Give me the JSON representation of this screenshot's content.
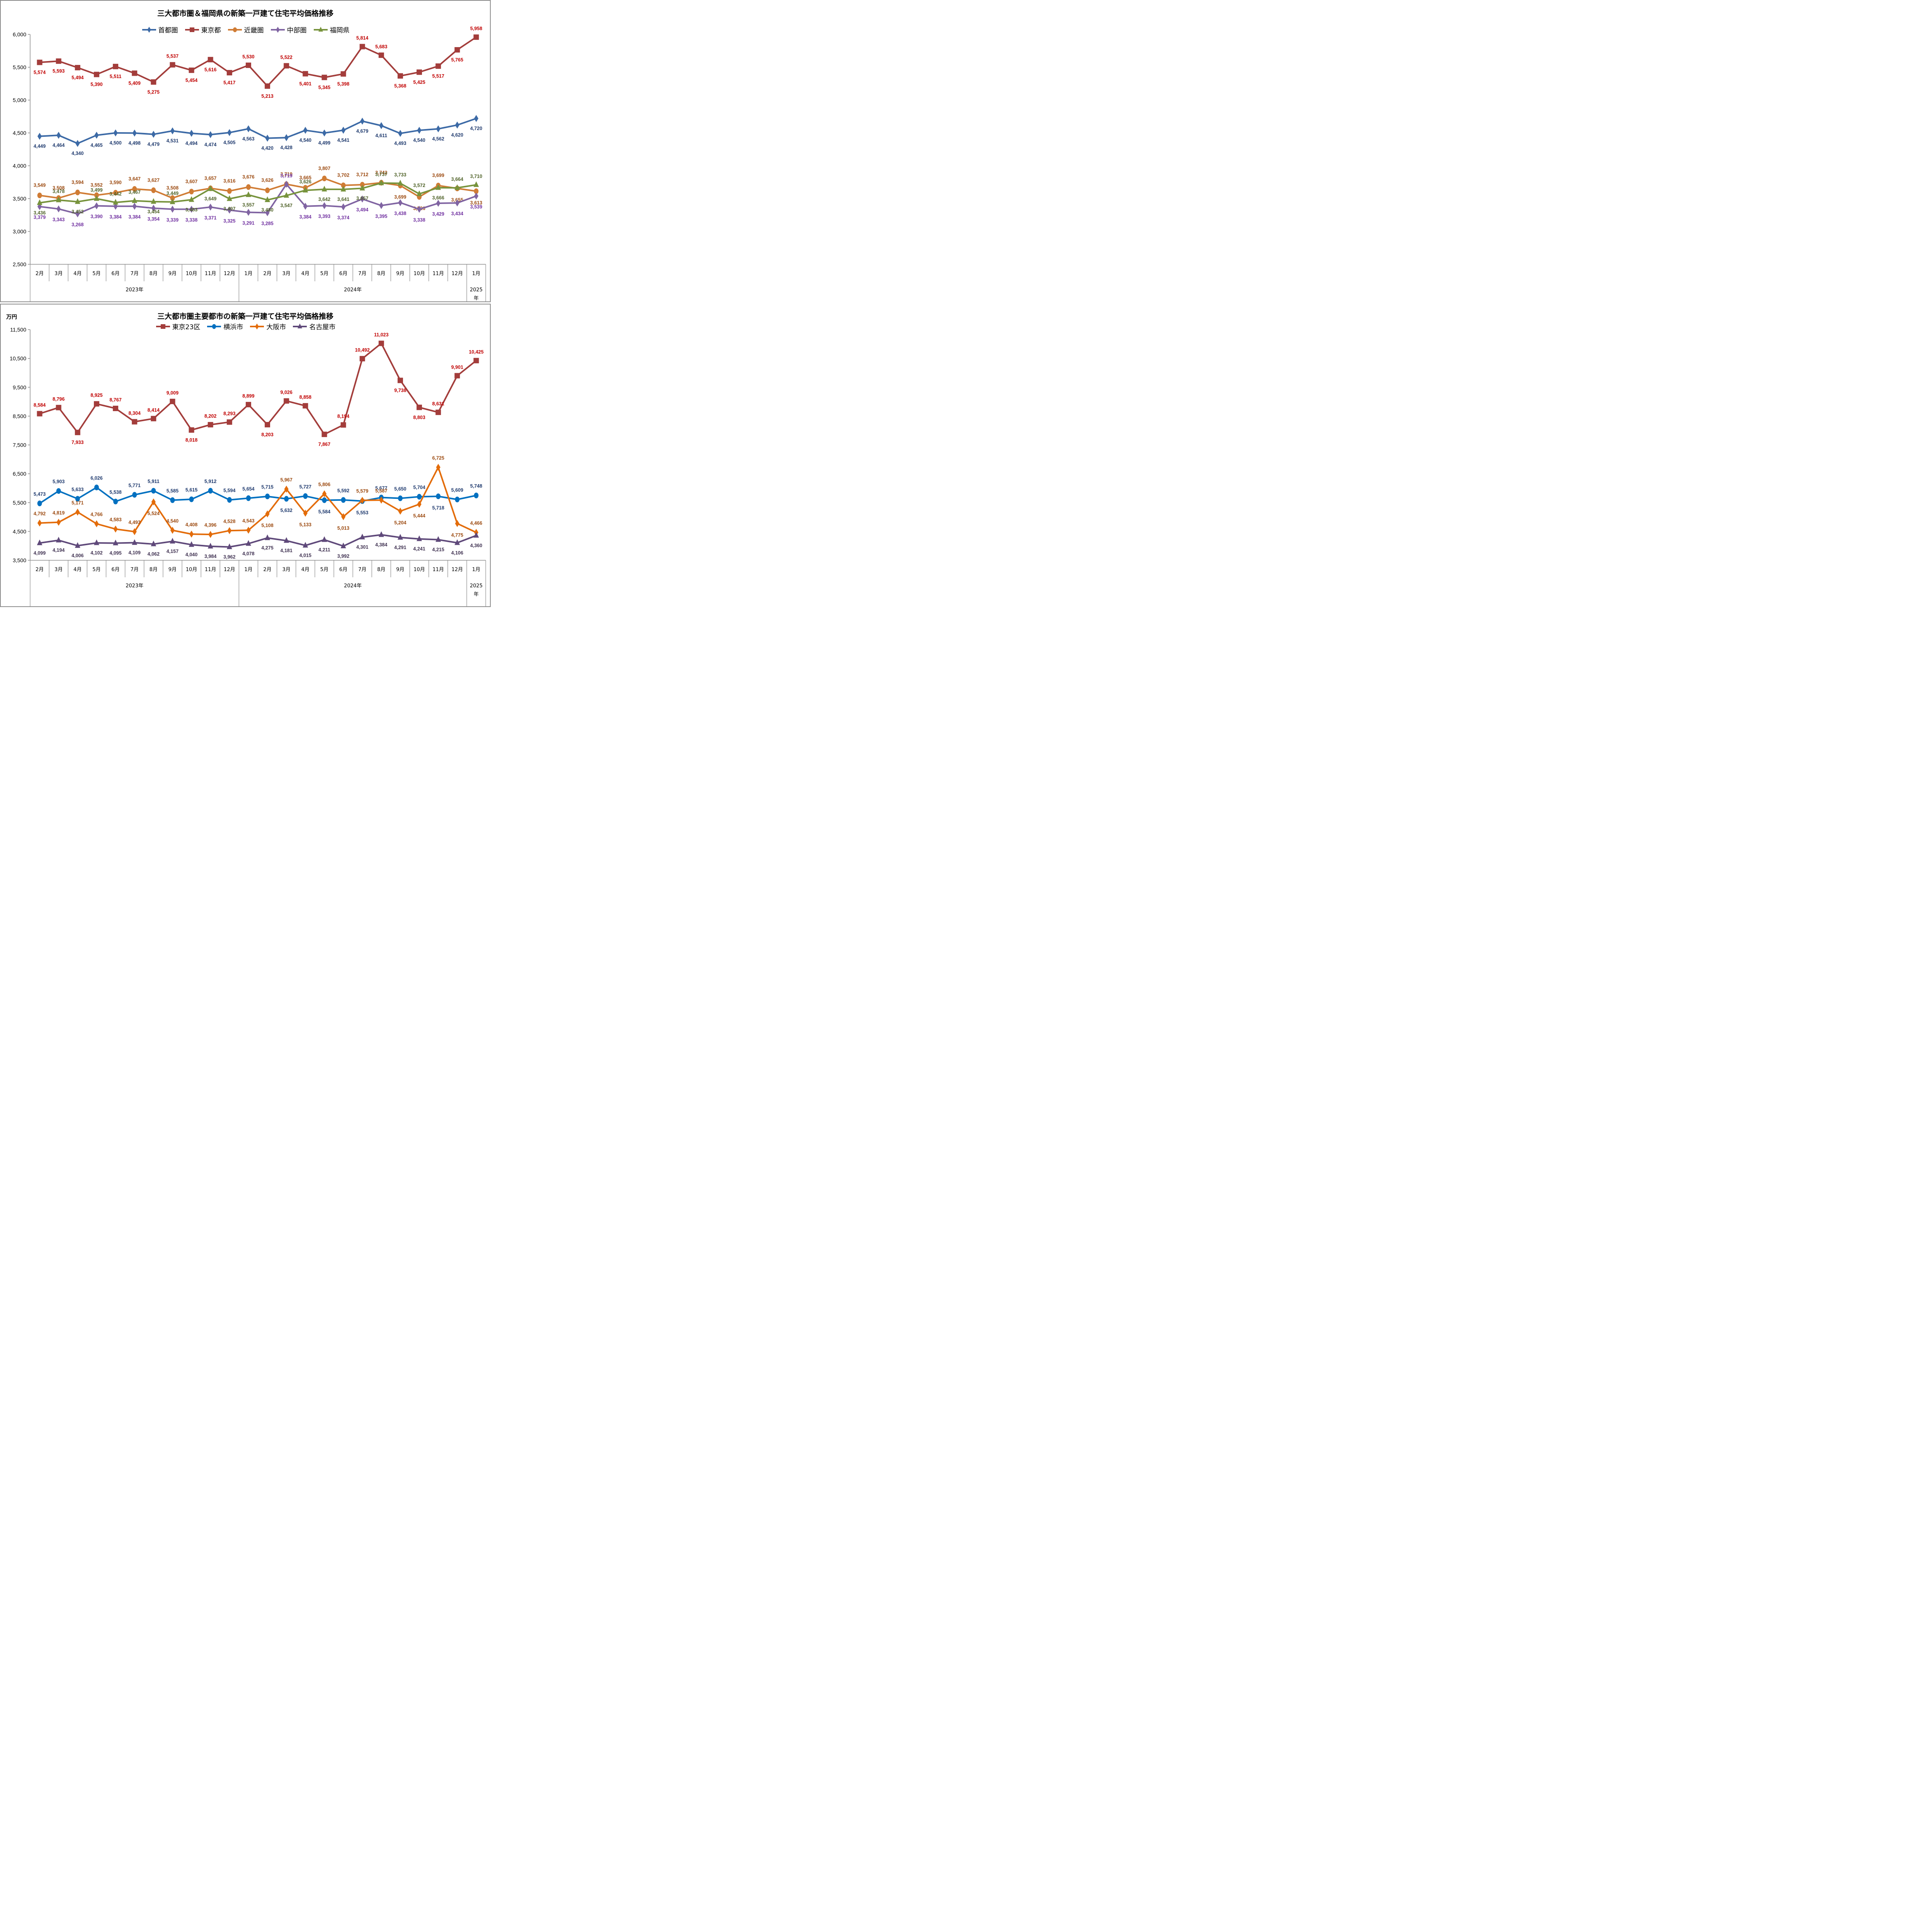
{
  "chart_data": [
    {
      "type": "line",
      "title": "三大都市圏＆福岡県の新築一戸建て住宅平均価格推移",
      "xlabel": "",
      "ylabel": "",
      "ylim": [
        2500,
        6000
      ],
      "yticks": [
        2500,
        3000,
        3500,
        4000,
        4500,
        5000,
        5500,
        6000
      ],
      "ytick_labels": [
        "2,500",
        "3,000",
        "3,500",
        "4,000",
        "4,500",
        "5,000",
        "5,500",
        "6,000"
      ],
      "grid": false,
      "legend_position": "top-center",
      "categories": [
        "2月",
        "3月",
        "4月",
        "5月",
        "6月",
        "7月",
        "8月",
        "9月",
        "10月",
        "11月",
        "12月",
        "1月",
        "2月",
        "3月",
        "4月",
        "5月",
        "6月",
        "7月",
        "8月",
        "9月",
        "10月",
        "11月",
        "12月",
        "1月"
      ],
      "year_groups": [
        {
          "label": "2023年",
          "count": 11
        },
        {
          "label": "2024年",
          "count": 12
        },
        {
          "label": "2025年",
          "count": 1
        }
      ],
      "series": [
        {
          "name": "首都圏",
          "color": "#3c6aa6",
          "label_color": "#1f3a6e",
          "marker": "diamond",
          "values": [
            4449,
            4464,
            4340,
            4465,
            4500,
            4498,
            4479,
            4531,
            4494,
            4474,
            4505,
            4563,
            4420,
            4428,
            4540,
            4499,
            4541,
            4679,
            4611,
            4493,
            4540,
            4562,
            4620,
            4720
          ]
        },
        {
          "name": "東京都",
          "color": "#a33d3b",
          "label_color": "#c00000",
          "marker": "square",
          "values": [
            5574,
            5593,
            5494,
            5390,
            5511,
            5409,
            5275,
            5537,
            5454,
            5616,
            5417,
            5530,
            5213,
            5522,
            5401,
            5345,
            5398,
            5814,
            5683,
            5368,
            5425,
            5517,
            5765,
            5958
          ]
        },
        {
          "name": "近畿圏",
          "color": "#d07c35",
          "label_color": "#9c4a10",
          "marker": "circle",
          "values": [
            3549,
            3508,
            3594,
            3552,
            3590,
            3647,
            3627,
            3508,
            3607,
            3657,
            3616,
            3676,
            3626,
            3719,
            3665,
            3807,
            3702,
            3712,
            3742,
            3699,
            3526,
            3699,
            3655,
            3613
          ]
        },
        {
          "name": "中部圏",
          "color": "#8064a2",
          "label_color": "#7030a0",
          "marker": "diamond",
          "values": [
            3379,
            3343,
            3268,
            3390,
            3384,
            3384,
            3354,
            3339,
            3338,
            3371,
            3325,
            3291,
            3285,
            3719,
            3384,
            3393,
            3374,
            3494,
            3395,
            3438,
            3338,
            3429,
            3434,
            3539
          ]
        },
        {
          "name": "福岡県",
          "color": "#77933c",
          "label_color": "#4f6228",
          "marker": "triangle",
          "values": [
            3436,
            3478,
            3452,
            3499,
            3442,
            3467,
            3454,
            3449,
            3483,
            3649,
            3497,
            3557,
            3480,
            3547,
            3626,
            3642,
            3641,
            3657,
            3737,
            3733,
            3572,
            3666,
            3664,
            3710
          ]
        }
      ]
    },
    {
      "type": "line",
      "title": "三大都市圏主要都市の新築一戸建て住宅平均価格推移",
      "unit_label": "万円",
      "xlabel": "",
      "ylabel": "万円",
      "ylim": [
        3500,
        11500
      ],
      "yticks": [
        3500,
        4500,
        5500,
        6500,
        7500,
        8500,
        9500,
        10500,
        11500
      ],
      "ytick_labels": [
        "3,500",
        "4,500",
        "5,500",
        "6,500",
        "7,500",
        "8,500",
        "9,500",
        "10,500",
        "11,500"
      ],
      "grid": false,
      "legend_position": "top-center",
      "categories": [
        "2月",
        "3月",
        "4月",
        "5月",
        "6月",
        "7月",
        "8月",
        "9月",
        "10月",
        "11月",
        "12月",
        "1月",
        "2月",
        "3月",
        "4月",
        "5月",
        "6月",
        "7月",
        "8月",
        "9月",
        "10月",
        "11月",
        "12月",
        "1月"
      ],
      "year_groups": [
        {
          "label": "2023年",
          "count": 11
        },
        {
          "label": "2024年",
          "count": 12
        },
        {
          "label": "2025年",
          "count": 1
        }
      ],
      "series": [
        {
          "name": "東京23区",
          "color": "#a33d3b",
          "label_color": "#c00000",
          "marker": "square",
          "values": [
            8584,
            8796,
            7933,
            8925,
            8767,
            8304,
            8414,
            9009,
            8018,
            8202,
            8293,
            8899,
            8203,
            9026,
            8858,
            7867,
            8194,
            10492,
            11023,
            9738,
            8803,
            8631,
            9901,
            10425
          ]
        },
        {
          "name": "横浜市",
          "color": "#0070c0",
          "label_color": "#1f3a6e",
          "marker": "circle",
          "values": [
            5473,
            5903,
            5633,
            6026,
            5538,
            5771,
            5911,
            5585,
            5615,
            5912,
            5594,
            5654,
            5715,
            5632,
            5727,
            5584,
            5592,
            5553,
            5677,
            5650,
            5704,
            5718,
            5609,
            5748
          ]
        },
        {
          "name": "大阪市",
          "color": "#e36c0a",
          "label_color": "#9c4a10",
          "marker": "diamond",
          "values": [
            4792,
            4819,
            5171,
            4766,
            4583,
            4493,
            5524,
            4540,
            4408,
            4396,
            4528,
            4543,
            5108,
            5967,
            5133,
            5806,
            5013,
            5579,
            5587,
            5204,
            5444,
            6725,
            4775,
            4466
          ]
        },
        {
          "name": "名古屋市",
          "color": "#5f497a",
          "label_color": "#3f3151",
          "marker": "triangle",
          "values": [
            4099,
            4194,
            4006,
            4102,
            4095,
            4109,
            4062,
            4157,
            4040,
            3984,
            3962,
            4078,
            4275,
            4181,
            4015,
            4211,
            3992,
            4301,
            4384,
            4291,
            4241,
            4215,
            4106,
            4360
          ]
        }
      ]
    }
  ]
}
